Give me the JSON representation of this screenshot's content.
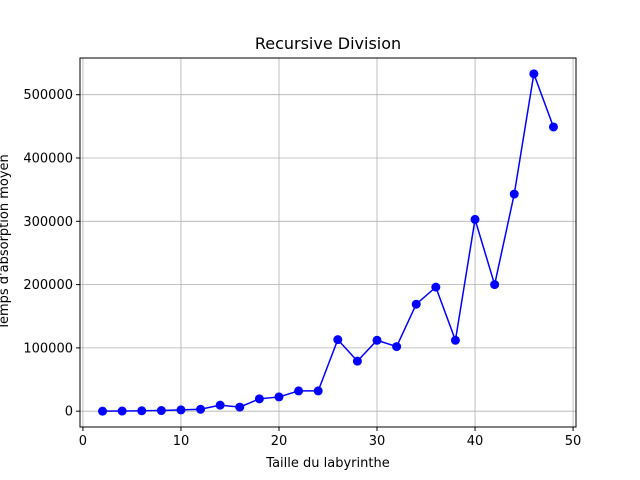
{
  "chart_data": {
    "type": "line",
    "title": "Recursive Division",
    "xlabel": "Taille du labyrinthe",
    "ylabel": "Temps d'absorption moyen",
    "xlim": [
      -0.3,
      50.3
    ],
    "ylim": [
      -25000,
      558000
    ],
    "xticks": [
      0,
      10,
      20,
      30,
      40,
      50
    ],
    "yticks": [
      0,
      100000,
      200000,
      300000,
      400000,
      500000
    ],
    "grid": true,
    "series": [
      {
        "color": "#0000ff",
        "marker": "circle",
        "x": [
          2,
          4,
          6,
          8,
          10,
          12,
          14,
          16,
          18,
          20,
          22,
          24,
          26,
          28,
          30,
          32,
          34,
          36,
          38,
          40,
          42,
          44,
          46,
          48
        ],
        "y": [
          0,
          200,
          600,
          1000,
          2000,
          3000,
          9500,
          6500,
          19500,
          22500,
          32000,
          32000,
          113000,
          79000,
          112000,
          102000,
          169000,
          196000,
          112000,
          303000,
          200000,
          343000,
          533000,
          449000
        ]
      }
    ]
  }
}
